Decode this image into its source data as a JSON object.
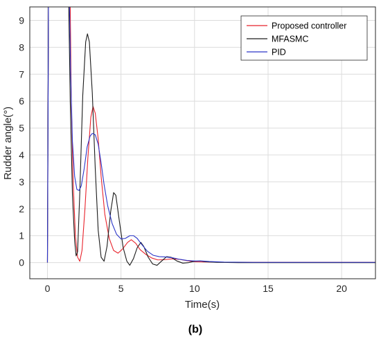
{
  "chart_data": {
    "type": "line",
    "title": "",
    "xlabel": "Time(s)",
    "ylabel": "Rudder angle(°)",
    "caption": "(b)",
    "xlim": [
      -1.2,
      22.3
    ],
    "ylim": [
      -0.6,
      9.5
    ],
    "xticks": [
      0,
      5,
      10,
      15,
      20
    ],
    "yticks": [
      0,
      1,
      2,
      3,
      4,
      5,
      6,
      7,
      8,
      9
    ],
    "grid": true,
    "legend_position": "top-right",
    "series": [
      {
        "name": "Proposed controller",
        "color": "#e8222b",
        "points": [
          [
            0,
            0
          ],
          [
            0.03,
            4
          ],
          [
            0.07,
            9.5
          ],
          [
            1.55,
            9.5
          ],
          [
            1.62,
            6
          ],
          [
            1.75,
            3
          ],
          [
            1.9,
            1
          ],
          [
            2.05,
            0.2
          ],
          [
            2.2,
            0.05
          ],
          [
            2.35,
            0.45
          ],
          [
            2.55,
            2
          ],
          [
            2.75,
            3.9
          ],
          [
            2.95,
            5.4
          ],
          [
            3.1,
            5.8
          ],
          [
            3.25,
            5.55
          ],
          [
            3.45,
            4.6
          ],
          [
            3.65,
            3.2
          ],
          [
            3.9,
            1.8
          ],
          [
            4.2,
            0.9
          ],
          [
            4.5,
            0.45
          ],
          [
            4.8,
            0.35
          ],
          [
            5.1,
            0.5
          ],
          [
            5.45,
            0.75
          ],
          [
            5.7,
            0.85
          ],
          [
            6.0,
            0.72
          ],
          [
            6.3,
            0.48
          ],
          [
            6.7,
            0.3
          ],
          [
            7.1,
            0.17
          ],
          [
            7.5,
            0.1
          ],
          [
            8.0,
            0.11
          ],
          [
            8.5,
            0.14
          ],
          [
            9.0,
            0.12
          ],
          [
            9.5,
            0.07
          ],
          [
            10.0,
            0.03
          ],
          [
            11,
            0.02
          ],
          [
            13,
            0.01
          ],
          [
            16,
            0.01
          ],
          [
            19,
            0.01
          ],
          [
            22.3,
            0.01
          ]
        ]
      },
      {
        "name": "MFASMC",
        "color": "#1a1a1a",
        "points": [
          [
            0,
            0
          ],
          [
            0.03,
            4
          ],
          [
            0.07,
            9.5
          ],
          [
            1.45,
            9.5
          ],
          [
            1.55,
            6
          ],
          [
            1.7,
            2.5
          ],
          [
            1.85,
            0.8
          ],
          [
            1.95,
            0.25
          ],
          [
            2.05,
            0.4
          ],
          [
            2.2,
            2.6
          ],
          [
            2.4,
            6.2
          ],
          [
            2.6,
            8.2
          ],
          [
            2.72,
            8.5
          ],
          [
            2.85,
            8.2
          ],
          [
            3.05,
            6.3
          ],
          [
            3.25,
            3.5
          ],
          [
            3.45,
            1.2
          ],
          [
            3.65,
            0.2
          ],
          [
            3.85,
            0.05
          ],
          [
            4.05,
            0.6
          ],
          [
            4.3,
            1.9
          ],
          [
            4.5,
            2.6
          ],
          [
            4.65,
            2.5
          ],
          [
            4.9,
            1.5
          ],
          [
            5.15,
            0.55
          ],
          [
            5.4,
            0.05
          ],
          [
            5.6,
            -0.1
          ],
          [
            5.85,
            0.15
          ],
          [
            6.1,
            0.55
          ],
          [
            6.35,
            0.75
          ],
          [
            6.55,
            0.6
          ],
          [
            6.85,
            0.2
          ],
          [
            7.15,
            -0.05
          ],
          [
            7.45,
            -0.1
          ],
          [
            7.75,
            0.05
          ],
          [
            8.1,
            0.22
          ],
          [
            8.4,
            0.2
          ],
          [
            8.8,
            0.06
          ],
          [
            9.2,
            -0.02
          ],
          [
            9.6,
            0.0
          ],
          [
            10.0,
            0.05
          ],
          [
            10.4,
            0.06
          ],
          [
            10.8,
            0.03
          ],
          [
            11.5,
            0.01
          ],
          [
            13,
            0.0
          ],
          [
            16,
            0.0
          ],
          [
            19,
            0.0
          ],
          [
            22.3,
            0.0
          ]
        ]
      },
      {
        "name": "PID",
        "color": "#2a35c8",
        "points": [
          [
            0,
            0
          ],
          [
            0.03,
            4
          ],
          [
            0.07,
            9.5
          ],
          [
            1.5,
            9.5
          ],
          [
            1.58,
            7
          ],
          [
            1.7,
            4.5
          ],
          [
            1.85,
            3.2
          ],
          [
            2.0,
            2.72
          ],
          [
            2.15,
            2.68
          ],
          [
            2.3,
            2.85
          ],
          [
            2.5,
            3.5
          ],
          [
            2.7,
            4.3
          ],
          [
            2.9,
            4.7
          ],
          [
            3.05,
            4.8
          ],
          [
            3.25,
            4.75
          ],
          [
            3.45,
            4.4
          ],
          [
            3.65,
            3.7
          ],
          [
            3.85,
            2.9
          ],
          [
            4.1,
            2.1
          ],
          [
            4.4,
            1.45
          ],
          [
            4.7,
            1.05
          ],
          [
            5.0,
            0.88
          ],
          [
            5.3,
            0.9
          ],
          [
            5.6,
            1.0
          ],
          [
            5.85,
            1.0
          ],
          [
            6.1,
            0.9
          ],
          [
            6.4,
            0.68
          ],
          [
            6.8,
            0.42
          ],
          [
            7.2,
            0.27
          ],
          [
            7.6,
            0.22
          ],
          [
            8.0,
            0.21
          ],
          [
            8.5,
            0.18
          ],
          [
            9.0,
            0.12
          ],
          [
            9.5,
            0.08
          ],
          [
            10.0,
            0.06
          ],
          [
            10.5,
            0.06
          ],
          [
            11,
            0.04
          ],
          [
            12,
            0.02
          ],
          [
            14,
            0.01
          ],
          [
            17,
            0.01
          ],
          [
            20,
            0.01
          ],
          [
            22.3,
            0.01
          ]
        ]
      }
    ]
  }
}
